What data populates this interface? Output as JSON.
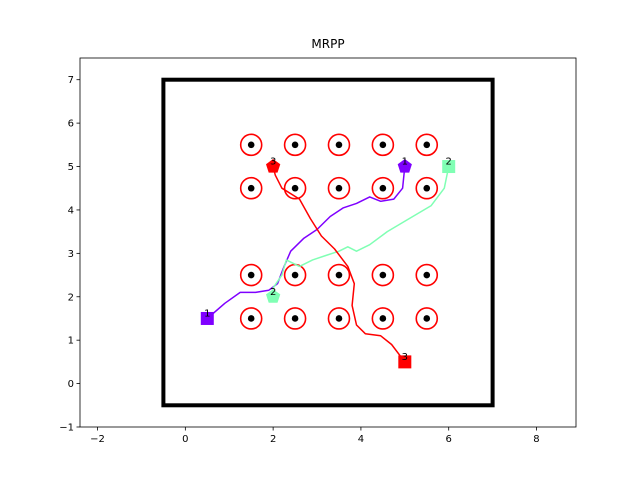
{
  "chart_data": {
    "type": "scatter",
    "title": "MRPP",
    "xlim": [
      -2.4,
      8.9
    ],
    "ylim": [
      -1.0,
      7.5
    ],
    "xticks": [
      -2,
      0,
      2,
      4,
      6,
      8
    ],
    "yticks": [
      -1,
      0,
      1,
      2,
      3,
      4,
      5,
      6,
      7
    ],
    "grid": false,
    "boundary": {
      "x": [
        -0.5,
        7.0
      ],
      "y": [
        -0.5,
        7.0
      ],
      "color": "#000000"
    },
    "obstacles": {
      "ring_color": "#ff0000",
      "center_color": "#000000",
      "points": [
        [
          1.5,
          5.5
        ],
        [
          2.5,
          5.5
        ],
        [
          3.5,
          5.5
        ],
        [
          4.5,
          5.5
        ],
        [
          5.5,
          5.5
        ],
        [
          1.5,
          4.5
        ],
        [
          2.5,
          4.5
        ],
        [
          3.5,
          4.5
        ],
        [
          4.5,
          4.5
        ],
        [
          5.5,
          4.5
        ],
        [
          1.5,
          2.5
        ],
        [
          2.5,
          2.5
        ],
        [
          3.5,
          2.5
        ],
        [
          4.5,
          2.5
        ],
        [
          5.5,
          2.5
        ],
        [
          1.5,
          1.5
        ],
        [
          2.5,
          1.5
        ],
        [
          3.5,
          1.5
        ],
        [
          4.5,
          1.5
        ],
        [
          5.5,
          1.5
        ]
      ]
    },
    "robots": [
      {
        "label": "1",
        "color": "#7f00ff",
        "start": [
          0.5,
          1.5
        ],
        "goal": [
          5.0,
          5.0
        ],
        "path": [
          [
            0.5,
            1.5
          ],
          [
            0.9,
            1.85
          ],
          [
            1.25,
            2.1
          ],
          [
            1.6,
            2.1
          ],
          [
            1.9,
            2.15
          ],
          [
            2.1,
            2.3
          ],
          [
            2.25,
            2.7
          ],
          [
            2.4,
            3.05
          ],
          [
            2.7,
            3.35
          ],
          [
            3.0,
            3.55
          ],
          [
            3.3,
            3.85
          ],
          [
            3.6,
            4.05
          ],
          [
            3.9,
            4.15
          ],
          [
            4.2,
            4.3
          ],
          [
            4.45,
            4.2
          ],
          [
            4.75,
            4.25
          ],
          [
            4.95,
            4.5
          ],
          [
            5.0,
            5.0
          ]
        ]
      },
      {
        "label": "2",
        "color": "#80ffb4",
        "start": [
          6.0,
          5.0
        ],
        "goal": [
          2.0,
          2.0
        ],
        "path": [
          [
            6.0,
            5.0
          ],
          [
            5.9,
            4.5
          ],
          [
            5.6,
            4.1
          ],
          [
            5.1,
            3.8
          ],
          [
            4.6,
            3.5
          ],
          [
            4.2,
            3.2
          ],
          [
            3.9,
            3.05
          ],
          [
            3.7,
            3.15
          ],
          [
            3.5,
            3.05
          ],
          [
            3.2,
            2.95
          ],
          [
            2.9,
            2.85
          ],
          [
            2.6,
            2.7
          ],
          [
            2.3,
            2.85
          ],
          [
            2.2,
            2.5
          ],
          [
            2.0,
            2.2
          ],
          [
            2.0,
            2.0
          ]
        ]
      },
      {
        "label": "3",
        "color": "#ff0000",
        "start": [
          5.0,
          0.5
        ],
        "goal": [
          2.0,
          5.0
        ],
        "path": [
          [
            5.0,
            0.5
          ],
          [
            4.7,
            0.9
          ],
          [
            4.45,
            1.1
          ],
          [
            4.1,
            1.15
          ],
          [
            3.9,
            1.35
          ],
          [
            3.8,
            1.8
          ],
          [
            3.85,
            2.3
          ],
          [
            3.7,
            2.7
          ],
          [
            3.4,
            3.1
          ],
          [
            3.1,
            3.4
          ],
          [
            2.85,
            3.8
          ],
          [
            2.6,
            4.25
          ],
          [
            2.2,
            4.5
          ],
          [
            2.05,
            4.8
          ],
          [
            2.0,
            5.0
          ]
        ]
      }
    ]
  }
}
